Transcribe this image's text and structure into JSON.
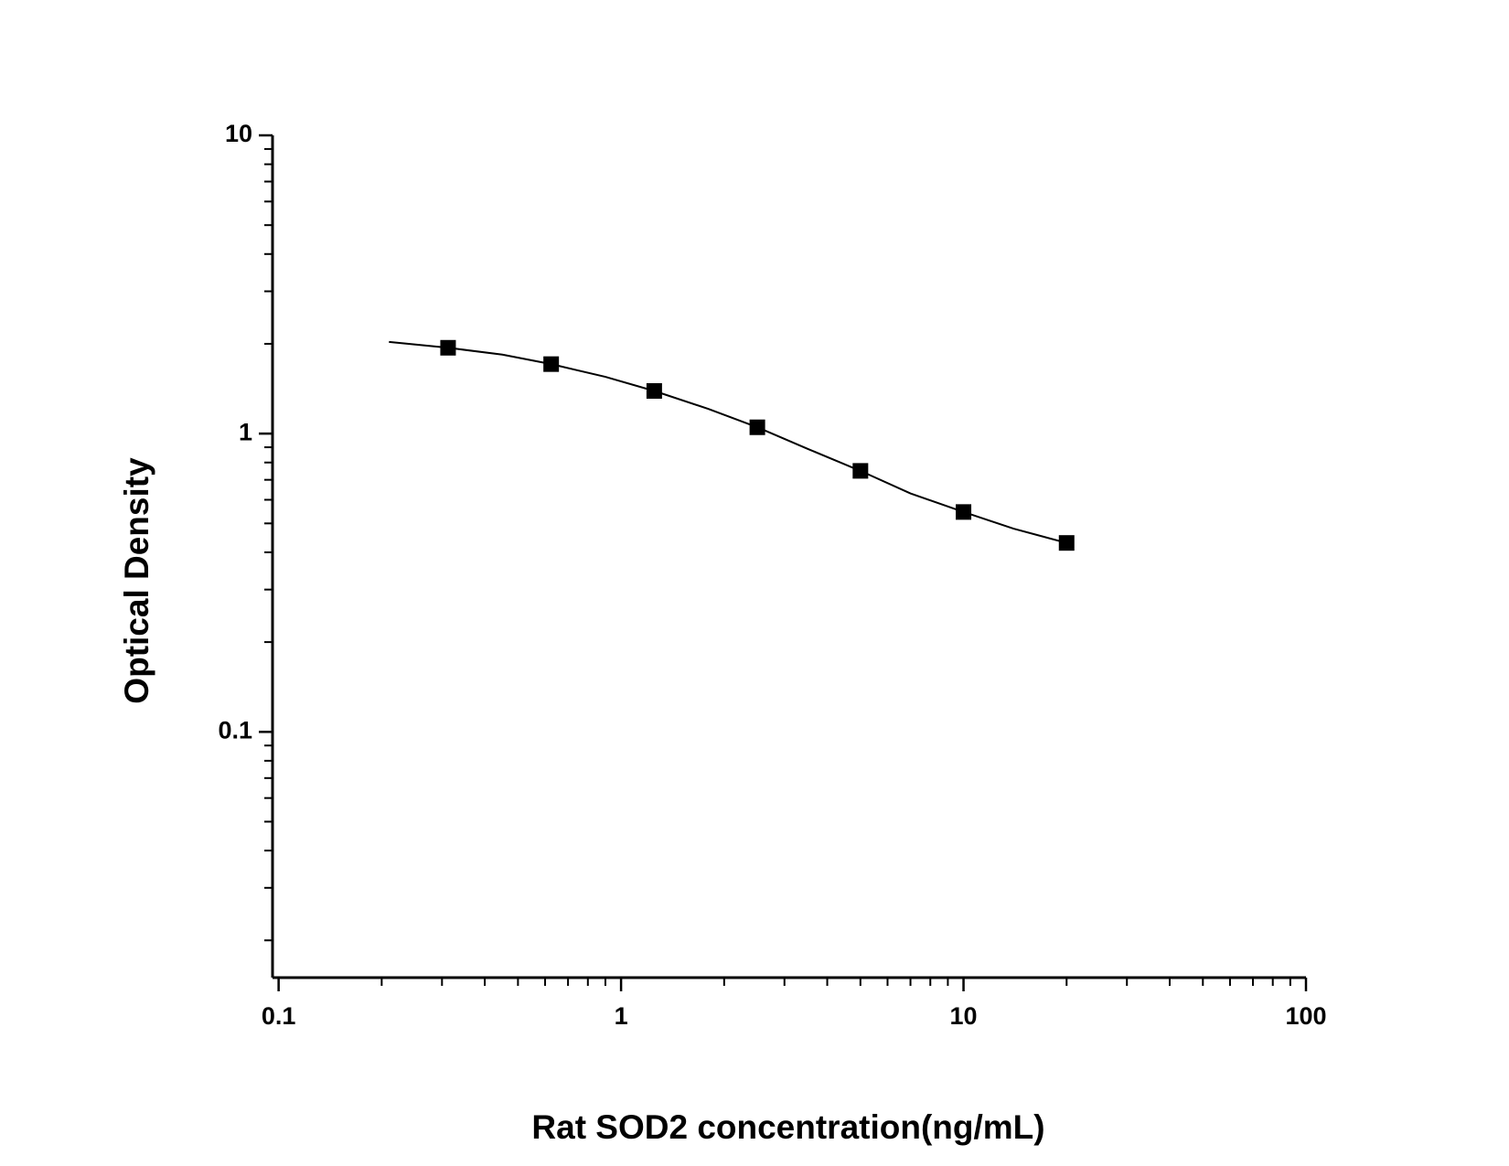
{
  "chart_data": {
    "type": "scatter",
    "x_label": "Rat SOD2 concentration(ng/mL)",
    "y_label": "Optical Density",
    "xscale": "log",
    "yscale": "log",
    "xlim": [
      0.096,
      100
    ],
    "ylim": [
      0.015,
      10
    ],
    "xticks": [
      0.1,
      1,
      10,
      100
    ],
    "yticks": [
      0.1,
      1,
      10
    ],
    "xminor_ticks": [
      0.2,
      0.3,
      0.4,
      0.5,
      0.6,
      0.7,
      0.8,
      0.9,
      2,
      3,
      4,
      5,
      6,
      7,
      8,
      9,
      20,
      30,
      40,
      50,
      60,
      70,
      80,
      90
    ],
    "yminor_ticks": [
      0.02,
      0.03,
      0.04,
      0.05,
      0.06,
      0.07,
      0.08,
      0.09,
      0.2,
      0.3,
      0.4,
      0.5,
      0.6,
      0.7,
      0.8,
      0.9,
      2,
      3,
      4,
      5,
      6,
      7,
      8,
      9
    ],
    "color": "#000000",
    "x": [
      0.3125,
      0.625,
      1.25,
      2.5,
      5,
      10,
      20
    ],
    "values": [
      1.94,
      1.71,
      1.39,
      1.05,
      0.75,
      0.546,
      0.43
    ],
    "fit_curve": {
      "x": [
        0.21,
        0.3125,
        0.45,
        0.625,
        0.9,
        1.25,
        1.8,
        2.5,
        3.5,
        5,
        7,
        10,
        14,
        20
      ],
      "y": [
        2.03,
        1.94,
        1.84,
        1.71,
        1.55,
        1.39,
        1.21,
        1.05,
        0.89,
        0.75,
        0.63,
        0.546,
        0.48,
        0.43
      ]
    }
  }
}
